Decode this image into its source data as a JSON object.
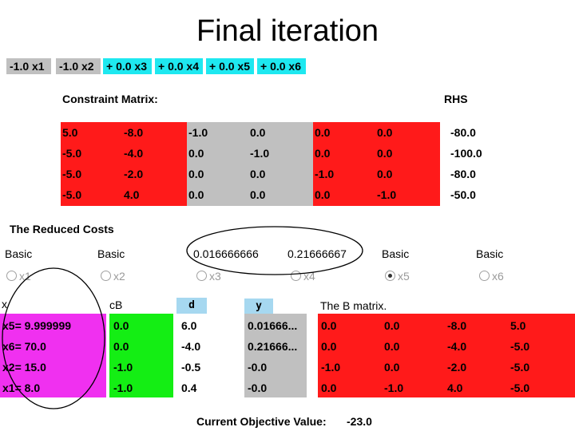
{
  "title": "Final iteration",
  "objective_terms": [
    "-1.0 x1",
    "-1.0 x2",
    "+ 0.0 x3",
    "+ 0.0 x4",
    "+ 0.0 x5",
    "+ 0.0 x6"
  ],
  "constraint_matrix": {
    "label": "Constraint Matrix:",
    "rhs_label": "RHS",
    "rows": [
      [
        "5.0",
        "-8.0",
        "-1.0",
        "0.0",
        "0.0",
        "0.0"
      ],
      [
        "-5.0",
        "-4.0",
        "0.0",
        "-1.0",
        "0.0",
        "0.0"
      ],
      [
        "-5.0",
        "-2.0",
        "0.0",
        "0.0",
        "-1.0",
        "0.0"
      ],
      [
        "-5.0",
        "4.0",
        "0.0",
        "0.0",
        "0.0",
        "-1.0"
      ]
    ],
    "rhs": [
      "-80.0",
      "-100.0",
      "-80.0",
      "-50.0"
    ]
  },
  "reduced_costs": {
    "label": "The Reduced Costs",
    "headers": [
      "Basic",
      "Basic",
      "0.016666666",
      "0.21666667",
      "Basic",
      "Basic"
    ],
    "vars": [
      "x1",
      "x2",
      "x3",
      "x4",
      "x5",
      "x6"
    ],
    "selected_index": 4
  },
  "basis": {
    "x_label": "x",
    "cb_label": "cB",
    "d_label": "d",
    "y_label": "y",
    "b_label": "The B matrix.",
    "x_values": [
      "x5= 9.999999",
      "x6= 70.0",
      "x2= 15.0",
      "x1= 8.0"
    ],
    "cb": [
      "0.0",
      "0.0",
      "-1.0",
      "-1.0"
    ],
    "d": [
      "6.0",
      "-4.0",
      "-0.5",
      "0.4"
    ],
    "y": [
      "0.01666...",
      "0.21666...",
      "-0.0",
      "-0.0"
    ],
    "b_rows": [
      [
        "0.0",
        "0.0",
        "-8.0",
        "5.0"
      ],
      [
        "0.0",
        "0.0",
        "-4.0",
        "-5.0"
      ],
      [
        "-1.0",
        "0.0",
        "-2.0",
        "-5.0"
      ],
      [
        "0.0",
        "-1.0",
        "4.0",
        "-5.0"
      ]
    ]
  },
  "current_objective": {
    "label": "Current Objective Value:",
    "value": "-23.0"
  },
  "colors": {
    "red": "#ff1a1a",
    "gray": "#c0c0c0",
    "cyan": "#1ee8f0",
    "green": "#14ee14",
    "magenta": "#f030f0",
    "light_blue": "#a6d8f0"
  }
}
